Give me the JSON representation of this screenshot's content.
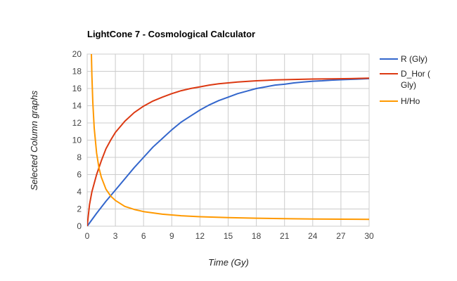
{
  "chart_data": {
    "type": "line",
    "title": "LightCone 7 - Cosmological Calculator",
    "xlabel": "Time (Gy)",
    "ylabel": "Selected Column graphs",
    "xlim": [
      0,
      30
    ],
    "ylim": [
      0,
      20
    ],
    "x_ticks": [
      "0",
      "3",
      "6",
      "9",
      "12",
      "15",
      "18",
      "21",
      "24",
      "27",
      "30"
    ],
    "y_ticks": [
      "0",
      "2",
      "4",
      "6",
      "8",
      "10",
      "12",
      "14",
      "16",
      "18",
      "20"
    ],
    "grid": true,
    "legend_position": "right",
    "series": [
      {
        "name": "R (Gly)",
        "color": "#3366cc",
        "x": [
          0,
          1,
          2,
          3,
          4,
          5,
          6,
          7,
          8,
          9,
          10,
          11,
          12,
          13,
          14,
          15,
          16,
          17,
          18,
          19,
          20,
          21,
          22,
          23,
          24,
          25,
          26,
          27,
          28,
          29,
          30
        ],
        "y": [
          0,
          1.5,
          2.9,
          4.2,
          5.5,
          6.8,
          8.0,
          9.2,
          10.2,
          11.2,
          12.1,
          12.8,
          13.5,
          14.1,
          14.6,
          15.0,
          15.4,
          15.7,
          16.0,
          16.2,
          16.4,
          16.5,
          16.65,
          16.75,
          16.85,
          16.9,
          16.97,
          17.02,
          17.06,
          17.1,
          17.15
        ]
      },
      {
        "name": "D_Hor (Gly)",
        "legend_lines": [
          "D_Hor (",
          "Gly)"
        ],
        "color": "#dc3912",
        "x": [
          0,
          0.25,
          0.5,
          1,
          1.5,
          2,
          2.5,
          3,
          4,
          5,
          6,
          7,
          8,
          9,
          10,
          11,
          12,
          13,
          14,
          15,
          16,
          18,
          20,
          22,
          24,
          26,
          28,
          30
        ],
        "y": [
          0,
          2.5,
          4.0,
          6.0,
          7.6,
          9.0,
          10.0,
          10.9,
          12.2,
          13.2,
          13.95,
          14.55,
          15.0,
          15.4,
          15.75,
          16.0,
          16.2,
          16.4,
          16.55,
          16.65,
          16.75,
          16.9,
          17.0,
          17.05,
          17.1,
          17.13,
          17.15,
          17.2
        ]
      },
      {
        "name": "H/Ho",
        "color": "#ff9900",
        "x": [
          0.45,
          0.5,
          0.6,
          0.75,
          1,
          1.25,
          1.5,
          2,
          2.5,
          3,
          4,
          5,
          6,
          8,
          10,
          12,
          15,
          18,
          21,
          24,
          27,
          30
        ],
        "y": [
          20,
          17.5,
          14.4,
          11.4,
          8.5,
          6.8,
          5.7,
          4.3,
          3.5,
          3.0,
          2.3,
          1.95,
          1.7,
          1.4,
          1.22,
          1.1,
          1.0,
          0.93,
          0.88,
          0.84,
          0.82,
          0.8
        ]
      }
    ]
  }
}
